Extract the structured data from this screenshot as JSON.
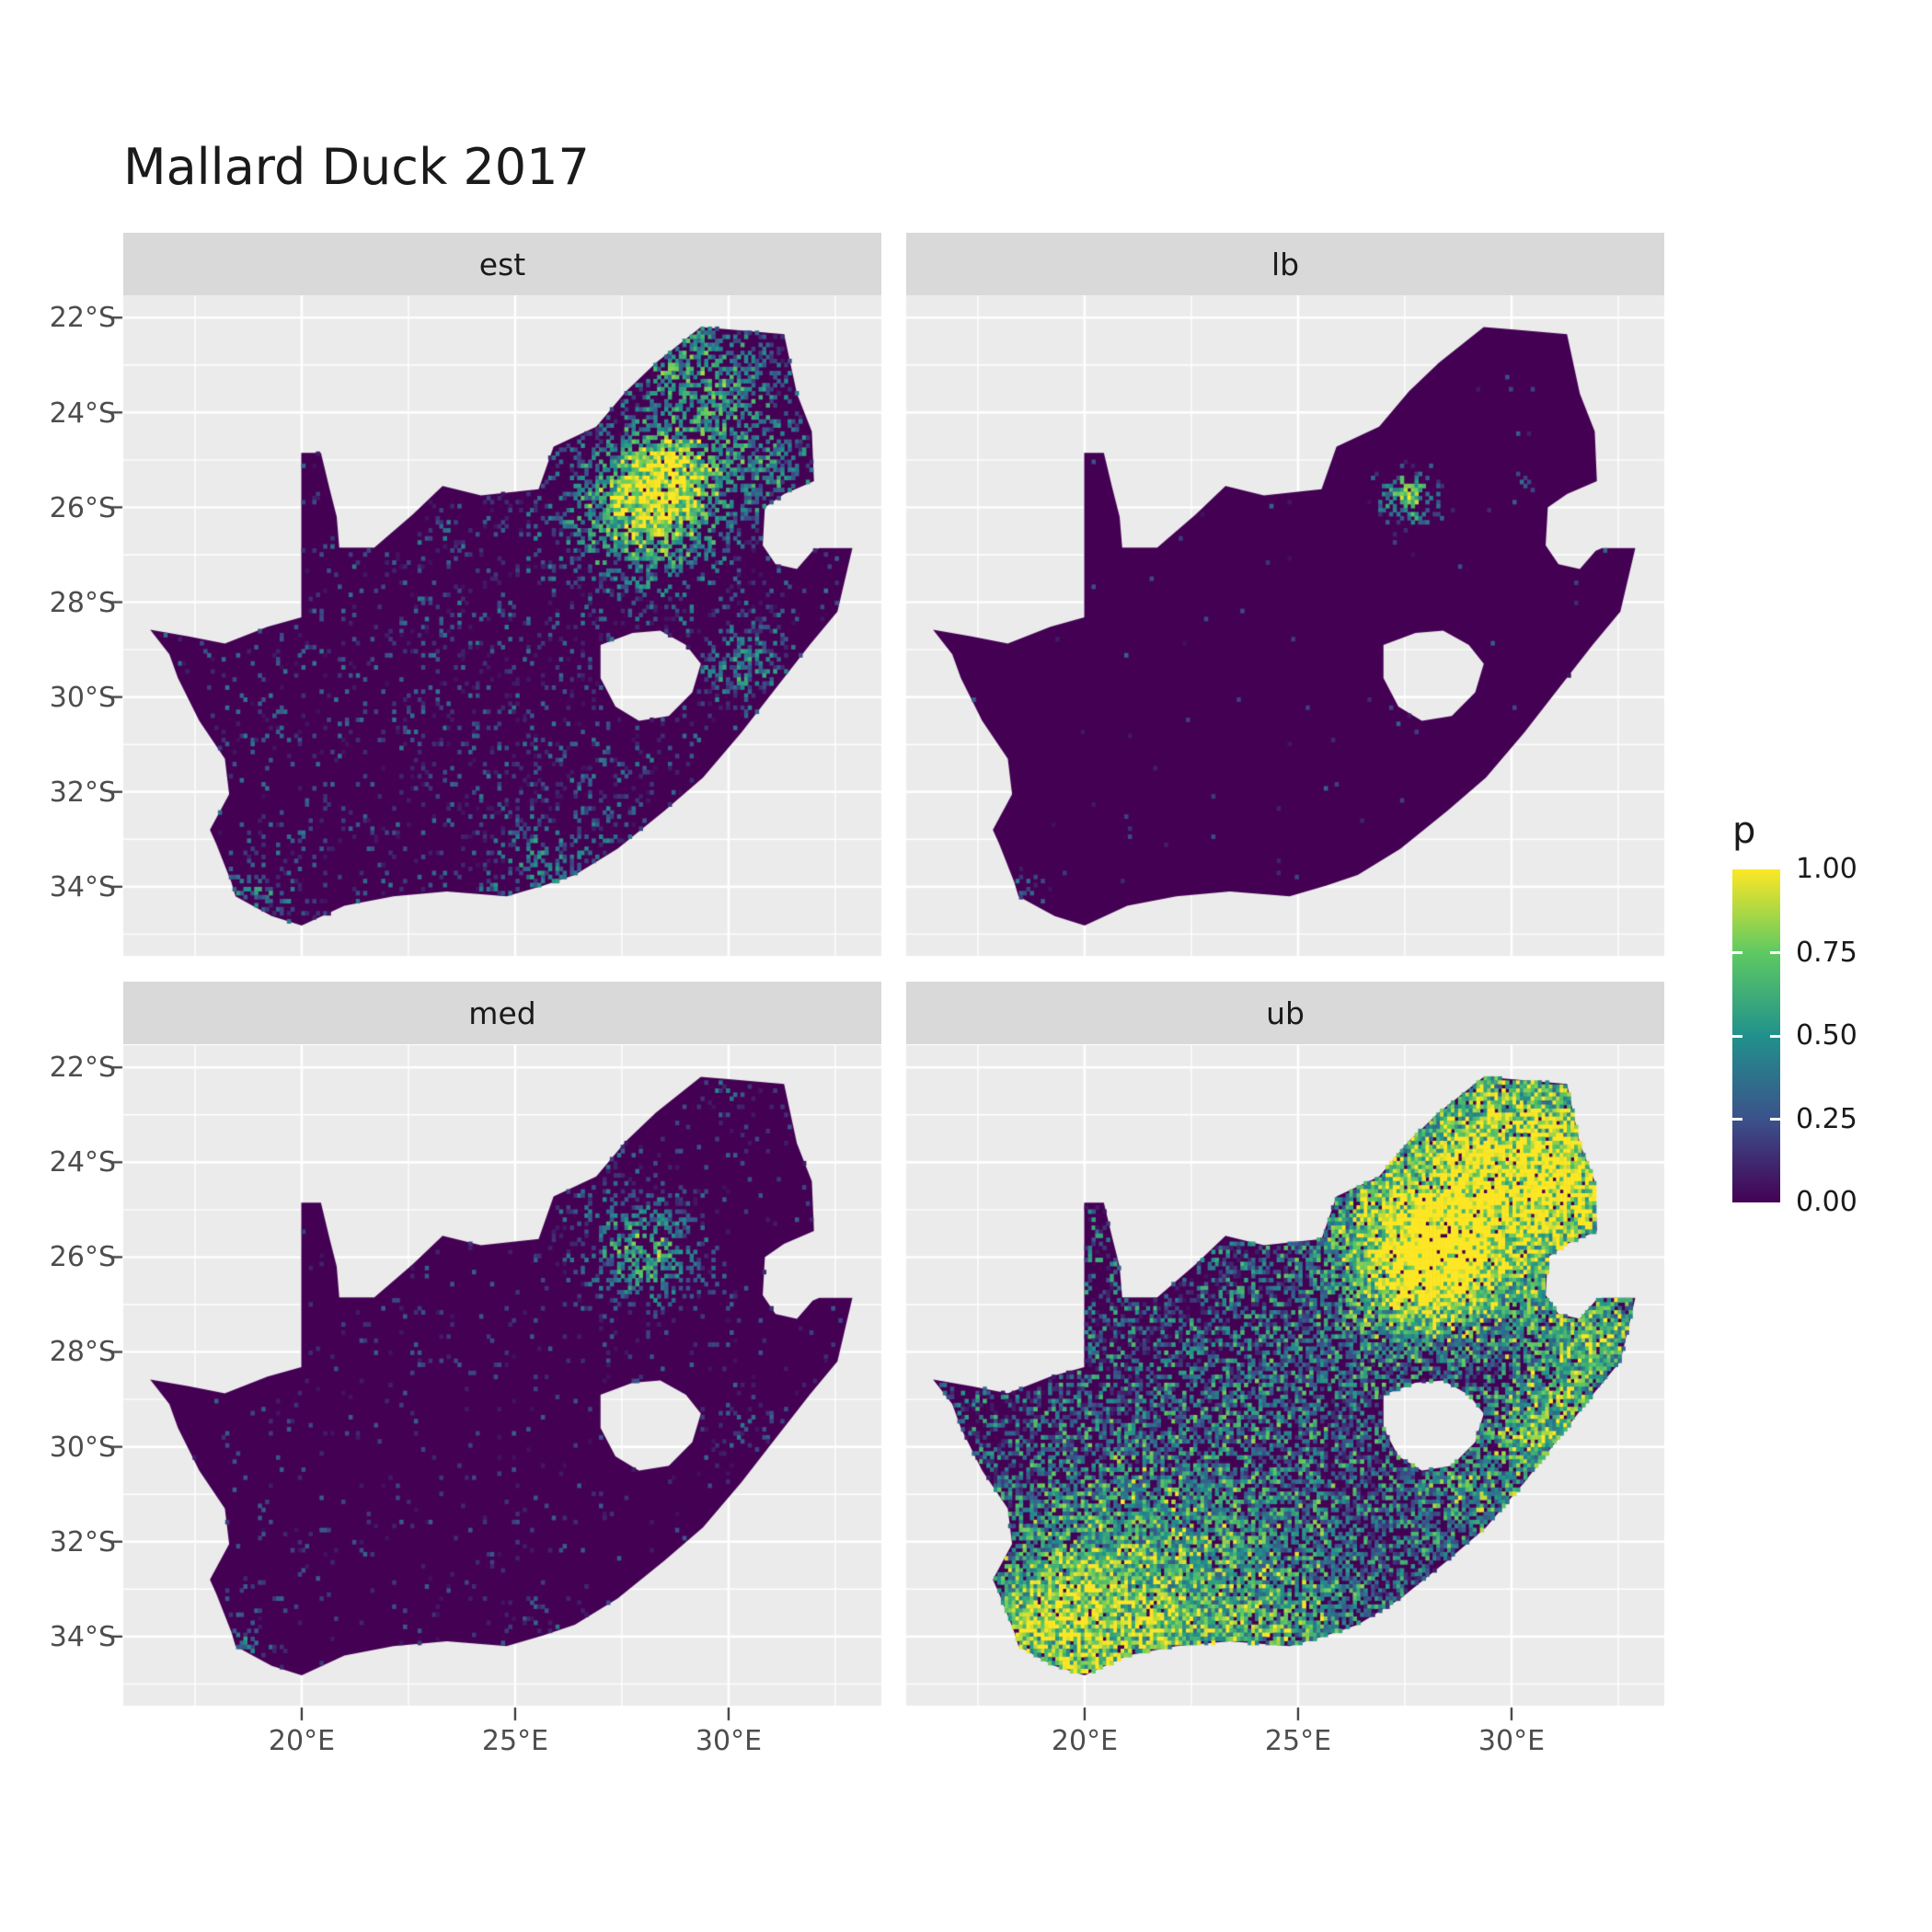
{
  "title": "Mallard Duck 2017",
  "facets": [
    {
      "label": "est"
    },
    {
      "label": "lb"
    },
    {
      "label": "med"
    },
    {
      "label": "ub"
    }
  ],
  "axes": {
    "y_tick_labels": [
      "22°S",
      "24°S",
      "26°S",
      "28°S",
      "30°S",
      "32°S",
      "34°S"
    ],
    "x_tick_labels": [
      "20°E",
      "25°E",
      "30°E"
    ]
  },
  "legend": {
    "title": "p",
    "tick_labels": [
      "1.00",
      "0.75",
      "0.50",
      "0.25",
      "0.00"
    ]
  },
  "colors": {
    "page_bg": "#ffffff",
    "panel_bg": "#ebebeb",
    "strip_bg": "#d9d9d9",
    "gridline": "#ffffff",
    "axis_tick": "#333333",
    "axis_text": "#4d4d4d",
    "map_base": "#440154",
    "viridis_max": "#fde725"
  },
  "chart_data": {
    "type": "heatmap",
    "subtype": "faceted raster probability map of South Africa",
    "title": "Mallard Duck 2017",
    "variable": "p",
    "value_range": [
      0,
      1
    ],
    "legend_breaks": [
      1.0,
      0.75,
      0.5,
      0.25,
      0.0
    ],
    "facet_labels": [
      "est",
      "lb",
      "med",
      "ub"
    ],
    "x_axis": {
      "label_ticks_deg_east": [
        20,
        25,
        30
      ],
      "range_deg_east": [
        15.8,
        33.6
      ]
    },
    "y_axis": {
      "label_ticks_deg_south": [
        22,
        24,
        26,
        28,
        30,
        32,
        34
      ],
      "range_deg_south": [
        21.5,
        35.5
      ]
    },
    "grid": {
      "major": true,
      "minor": true
    },
    "legend_position": "right",
    "colormap": [
      {
        "v": 0.0,
        "c": "#440154"
      },
      {
        "v": 0.25,
        "c": "#3b528b"
      },
      {
        "v": 0.5,
        "c": "#21918c"
      },
      {
        "v": 0.75,
        "c": "#5ec962"
      },
      {
        "v": 1.0,
        "c": "#fde725"
      }
    ],
    "facets": [
      {
        "label": "est",
        "description": "Mostly near-zero (dark purple) with fine speckle; strong high-p cluster over Gauteng (~28E,26S), secondary clusters in Limpopo/Mpumalanga, KwaZulu-Natal coast and the south/southwest coast.",
        "raster": {
          "seed": 101,
          "base": 0.09,
          "value_scale": 0.4,
          "hotspots": [
            {
              "lon": 28.1,
              "lat": -26.0,
              "r": 1.0,
              "w": 0.8
            },
            {
              "lon": 28.6,
              "lat": -25.3,
              "r": 0.7,
              "w": 0.45
            },
            {
              "lon": 29.8,
              "lat": -23.6,
              "r": 0.9,
              "w": 0.4
            },
            {
              "lon": 31.1,
              "lat": -25.3,
              "r": 0.7,
              "w": 0.3
            },
            {
              "lon": 28.6,
              "lat": -22.5,
              "r": 0.8,
              "w": 0.35
            },
            {
              "lon": 30.4,
              "lat": -29.3,
              "r": 0.6,
              "w": 0.35
            },
            {
              "lon": 25.6,
              "lat": -33.9,
              "r": 0.7,
              "w": 0.22
            },
            {
              "lon": 18.7,
              "lat": -34.1,
              "r": 0.6,
              "w": 0.28
            },
            {
              "lon": 26.8,
              "lat": -32.8,
              "r": 1.3,
              "w": 0.1
            },
            {
              "lon": 24.5,
              "lat": -28.5,
              "r": 2.5,
              "w": 0.04
            }
          ]
        }
      },
      {
        "label": "lb",
        "description": "Almost entirely zero (uniform dark purple); one tiny yellow cluster near ~27.6E,25.8S and isolated dots at the southwest tip.",
        "raster": {
          "seed": 202,
          "base": 0.007,
          "value_scale": 0.32,
          "hotspots": [
            {
              "lon": 27.6,
              "lat": -25.8,
              "r": 0.33,
              "w": 0.9
            },
            {
              "lon": 18.5,
              "lat": -34.3,
              "r": 0.3,
              "w": 0.3
            },
            {
              "lon": 30.3,
              "lat": -25.5,
              "r": 0.15,
              "w": 0.25
            }
          ]
        }
      },
      {
        "label": "med",
        "description": "Mostly zero with sparse speckle; moderate cluster over Gauteng (~28E,26S), faint speckle in the northeast and along the south coast, yellow dot near Cape Town.",
        "raster": {
          "seed": 303,
          "base": 0.045,
          "value_scale": 0.32,
          "hotspots": [
            {
              "lon": 28.1,
              "lat": -26.0,
              "r": 0.75,
              "w": 0.55
            },
            {
              "lon": 27.0,
              "lat": -24.8,
              "r": 1.0,
              "w": 0.12
            },
            {
              "lon": 30.2,
              "lat": -29.6,
              "r": 0.5,
              "w": 0.15
            },
            {
              "lon": 18.6,
              "lat": -34.2,
              "r": 0.35,
              "w": 0.3
            },
            {
              "lon": 29.9,
              "lat": -22.3,
              "r": 0.4,
              "w": 0.2
            },
            {
              "lon": 25.8,
              "lat": -33.9,
              "r": 0.6,
              "w": 0.12
            }
          ]
        }
      },
      {
        "label": "ub",
        "description": "Widespread non-zero values: dense yellow mass over Gauteng and much of the northeast, teal web across the interior and west, yellow band along the southern coast.",
        "raster": {
          "seed": 404,
          "base": 0.36,
          "value_scale": 0.62,
          "hotspots": [
            {
              "lon": 28.1,
              "lat": -26.0,
              "r": 0.9,
              "w": 1.0
            },
            {
              "lon": 28.5,
              "lat": -25.0,
              "r": 1.9,
              "w": 0.55
            },
            {
              "lon": 30.5,
              "lat": -23.5,
              "r": 1.6,
              "w": 0.5
            },
            {
              "lon": 31.8,
              "lat": -24.6,
              "r": 1.0,
              "w": 0.45
            },
            {
              "lon": 32.0,
              "lat": -27.9,
              "r": 1.0,
              "w": 0.5
            },
            {
              "lon": 30.7,
              "lat": -29.8,
              "r": 0.8,
              "w": 0.45
            },
            {
              "lon": 20.8,
              "lat": -34.4,
              "r": 1.6,
              "w": 0.55
            },
            {
              "lon": 18.8,
              "lat": -33.7,
              "r": 0.9,
              "w": 0.45
            },
            {
              "lon": 24.9,
              "lat": -33.95,
              "r": 1.4,
              "w": 0.3
            },
            {
              "lon": 23.0,
              "lat": -31.8,
              "r": 2.2,
              "w": 0.18
            },
            {
              "lon": 20.2,
              "lat": -31.5,
              "r": 1.8,
              "w": 0.18
            },
            {
              "lon": 25.0,
              "lat": -28.5,
              "r": 2.0,
              "w": 0.12
            },
            {
              "lon": 28.9,
              "lat": -31.1,
              "r": 1.0,
              "w": 0.3
            }
          ]
        }
      }
    ],
    "geometry": {
      "region": "South Africa",
      "outline_lonlat": [
        [
          16.45,
          -28.58
        ],
        [
          17.35,
          -28.72
        ],
        [
          18.2,
          -28.87
        ],
        [
          19.2,
          -28.52
        ],
        [
          19.99,
          -28.32
        ],
        [
          19.99,
          -24.85
        ],
        [
          20.45,
          -24.85
        ],
        [
          20.65,
          -25.6
        ],
        [
          20.82,
          -26.2
        ],
        [
          20.88,
          -26.85
        ],
        [
          21.7,
          -26.85
        ],
        [
          22.6,
          -26.15
        ],
        [
          23.3,
          -25.55
        ],
        [
          24.2,
          -25.75
        ],
        [
          25.55,
          -25.62
        ],
        [
          25.9,
          -24.72
        ],
        [
          26.9,
          -24.3
        ],
        [
          27.6,
          -23.55
        ],
        [
          28.3,
          -22.95
        ],
        [
          29.35,
          -22.2
        ],
        [
          30.0,
          -22.25
        ],
        [
          31.3,
          -22.35
        ],
        [
          31.6,
          -23.6
        ],
        [
          31.95,
          -24.4
        ],
        [
          32.0,
          -25.45
        ],
        [
          31.3,
          -25.72
        ],
        [
          30.85,
          -26.0
        ],
        [
          30.8,
          -26.8
        ],
        [
          31.1,
          -27.2
        ],
        [
          31.6,
          -27.3
        ],
        [
          31.97,
          -26.92
        ],
        [
          32.12,
          -26.86
        ],
        [
          32.9,
          -26.86
        ],
        [
          32.55,
          -28.2
        ],
        [
          31.9,
          -28.9
        ],
        [
          31.05,
          -29.88
        ],
        [
          30.3,
          -30.75
        ],
        [
          29.4,
          -31.7
        ],
        [
          28.5,
          -32.4
        ],
        [
          27.4,
          -33.2
        ],
        [
          26.4,
          -33.75
        ],
        [
          25.65,
          -33.98
        ],
        [
          24.8,
          -34.2
        ],
        [
          23.4,
          -34.1
        ],
        [
          22.15,
          -34.2
        ],
        [
          21.0,
          -34.4
        ],
        [
          20.0,
          -34.82
        ],
        [
          19.3,
          -34.62
        ],
        [
          18.85,
          -34.4
        ],
        [
          18.45,
          -34.2
        ],
        [
          18.35,
          -33.9
        ],
        [
          18.0,
          -33.1
        ],
        [
          17.85,
          -32.8
        ],
        [
          18.3,
          -32.05
        ],
        [
          18.2,
          -31.3
        ],
        [
          17.6,
          -30.5
        ],
        [
          17.1,
          -29.6
        ],
        [
          16.9,
          -29.1
        ]
      ],
      "lesotho_hole_lonlat": [
        [
          27.0,
          -28.9
        ],
        [
          27.75,
          -28.65
        ],
        [
          28.4,
          -28.6
        ],
        [
          29.0,
          -28.9
        ],
        [
          29.35,
          -29.3
        ],
        [
          29.15,
          -29.9
        ],
        [
          28.6,
          -30.4
        ],
        [
          27.9,
          -30.5
        ],
        [
          27.35,
          -30.2
        ],
        [
          27.0,
          -29.6
        ]
      ]
    }
  }
}
